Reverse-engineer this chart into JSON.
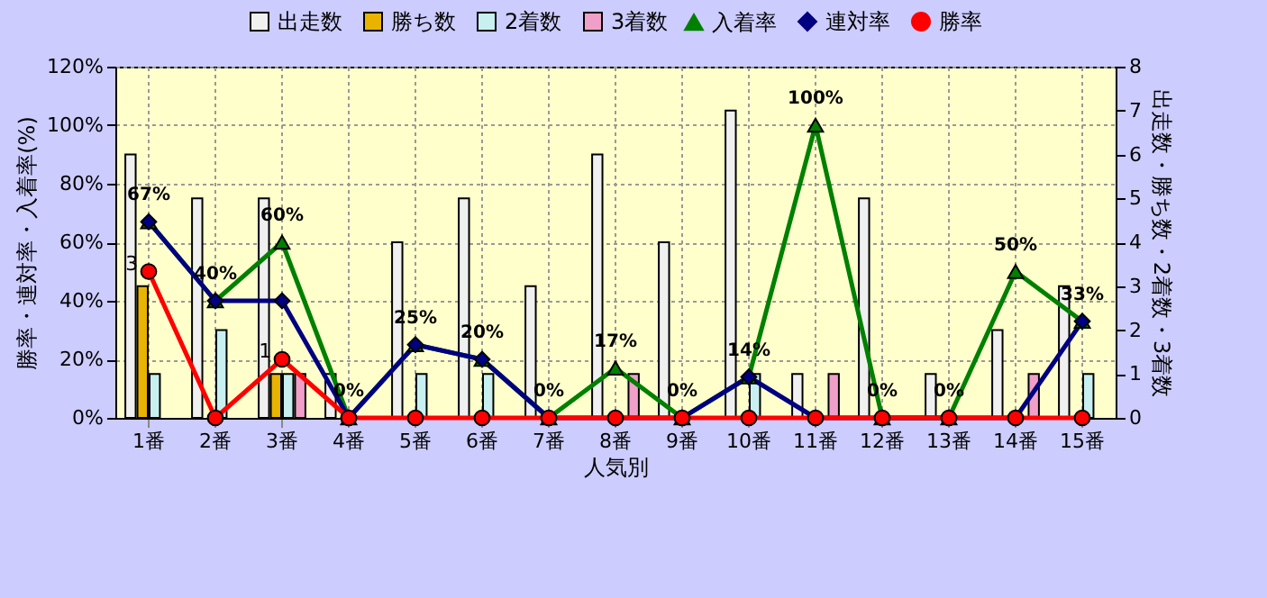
{
  "chart_data": {
    "type": "bar",
    "xlabel": "人気別",
    "ylabel": "勝率・連対率・入着率(%)",
    "y2label": "出走数・勝ち数・2着数・3着数",
    "categories": [
      "1番",
      "2番",
      "3番",
      "4番",
      "5番",
      "6番",
      "7番",
      "8番",
      "9番",
      "10番",
      "11番",
      "12番",
      "13番",
      "14番",
      "15番"
    ],
    "series": [
      {
        "name": "出走数",
        "type": "bar",
        "axis": "y2",
        "color": "#f0f0f0",
        "values": [
          6,
          5,
          5,
          1,
          4,
          5,
          3,
          6,
          4,
          7,
          1,
          5,
          1,
          2,
          3
        ]
      },
      {
        "name": "勝ち数",
        "type": "bar",
        "axis": "y2",
        "color": "#e8b400",
        "values": [
          3,
          0,
          1,
          0,
          0,
          0,
          0,
          0,
          0,
          0,
          0,
          0,
          0,
          0,
          0
        ],
        "value_labels": [
          "3",
          null,
          "1",
          null,
          null,
          null,
          null,
          null,
          null,
          null,
          null,
          null,
          null,
          null,
          null
        ]
      },
      {
        "name": "2着数",
        "type": "bar",
        "axis": "y2",
        "color": "#c8f0f0",
        "values": [
          1,
          2,
          1,
          0,
          1,
          1,
          0,
          0,
          0,
          1,
          0,
          0,
          0,
          0,
          1
        ]
      },
      {
        "name": "3着数",
        "type": "bar",
        "axis": "y2",
        "color": "#f0a0c8",
        "values": [
          0,
          0,
          1,
          0,
          0,
          0,
          0,
          1,
          0,
          0,
          1,
          0,
          0,
          1,
          0
        ]
      },
      {
        "name": "入着率",
        "type": "line",
        "color": "#008000",
        "marker": "triangle",
        "values": [
          67,
          40,
          60,
          0,
          25,
          20,
          0,
          17,
          0,
          14,
          100,
          0,
          0,
          50,
          33
        ],
        "value_labels": [
          "67%",
          "40%",
          "60%",
          "0%",
          "25%",
          "20%",
          "0%",
          "17%",
          "0%",
          "14%",
          "100%",
          "0%",
          "0%",
          "50%",
          "33%"
        ]
      },
      {
        "name": "連対率",
        "type": "line",
        "color": "#000080",
        "marker": "diamond",
        "values": [
          67,
          40,
          40,
          0,
          25,
          20,
          0,
          0,
          0,
          14,
          0,
          0,
          0,
          0,
          33
        ]
      },
      {
        "name": "勝率",
        "type": "line",
        "color": "#ff0000",
        "marker": "circle",
        "values": [
          50,
          0,
          20,
          0,
          0,
          0,
          0,
          0,
          0,
          0,
          0,
          0,
          0,
          0,
          0
        ]
      }
    ],
    "ylim": [
      0,
      120
    ],
    "yticks": [
      {
        "value": 0,
        "label": "0%"
      },
      {
        "value": 20,
        "label": "20%"
      },
      {
        "value": 40,
        "label": "40%"
      },
      {
        "value": 60,
        "label": "60%"
      },
      {
        "value": 80,
        "label": "80%"
      },
      {
        "value": 100,
        "label": "100%"
      },
      {
        "value": 120,
        "label": "120%"
      }
    ],
    "y2lim": [
      0,
      8
    ],
    "y2ticks": [
      0,
      1,
      2,
      3,
      4,
      5,
      6,
      7,
      8
    ],
    "grid": true,
    "legend": "top"
  }
}
